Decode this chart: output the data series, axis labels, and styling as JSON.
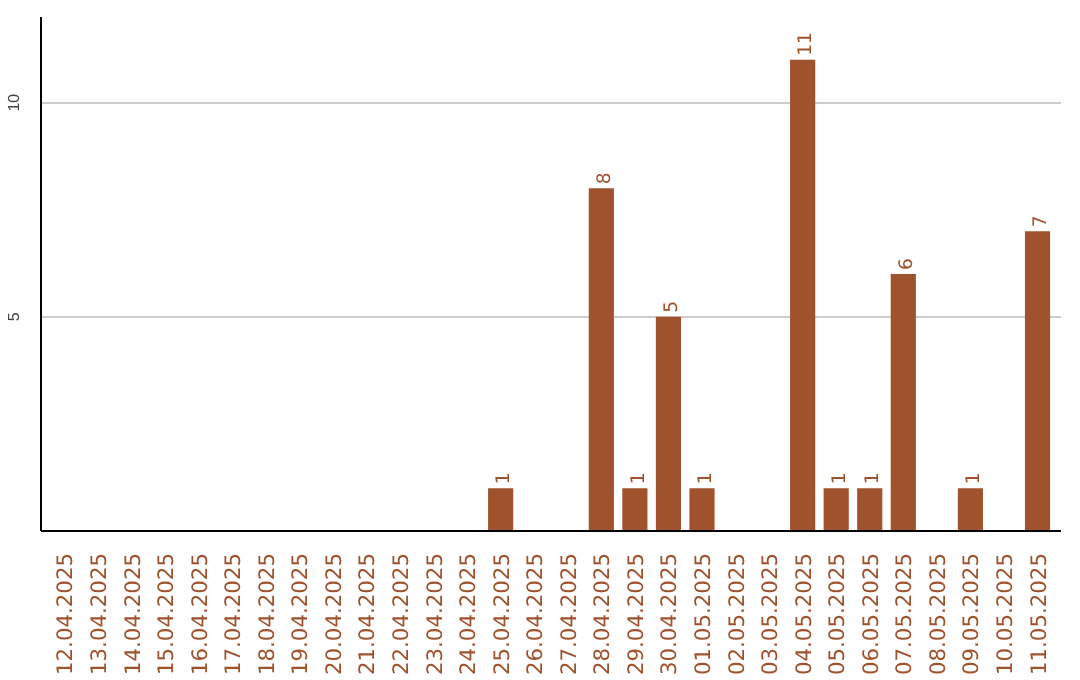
{
  "chart_data": {
    "type": "bar",
    "categories": [
      "12.04.2025",
      "13.04.2025",
      "14.04.2025",
      "15.04.2025",
      "16.04.2025",
      "17.04.2025",
      "18.04.2025",
      "19.04.2025",
      "20.04.2025",
      "21.04.2025",
      "22.04.2025",
      "23.04.2025",
      "24.04.2025",
      "25.04.2025",
      "26.04.2025",
      "27.04.2025",
      "28.04.2025",
      "29.04.2025",
      "30.04.2025",
      "01.05.2025",
      "02.05.2025",
      "03.05.2025",
      "04.05.2025",
      "05.05.2025",
      "06.05.2025",
      "07.05.2025",
      "08.05.2025",
      "09.05.2025",
      "10.05.2025",
      "11.05.2025"
    ],
    "values": [
      0,
      0,
      0,
      0,
      0,
      0,
      0,
      0,
      0,
      0,
      0,
      0,
      0,
      1,
      0,
      0,
      8,
      1,
      5,
      1,
      0,
      0,
      11,
      1,
      1,
      6,
      0,
      1,
      0,
      7
    ],
    "value_labels": [
      null,
      null,
      null,
      null,
      null,
      null,
      null,
      null,
      null,
      null,
      null,
      null,
      null,
      "1",
      null,
      null,
      "8",
      "1",
      "5",
      "1",
      null,
      null,
      "11",
      "1",
      "1",
      "6",
      null,
      "1",
      null,
      "7"
    ],
    "color": "#a0522d",
    "ylim": [
      0,
      12
    ],
    "yticks": [
      5,
      10
    ],
    "grid": "y"
  }
}
